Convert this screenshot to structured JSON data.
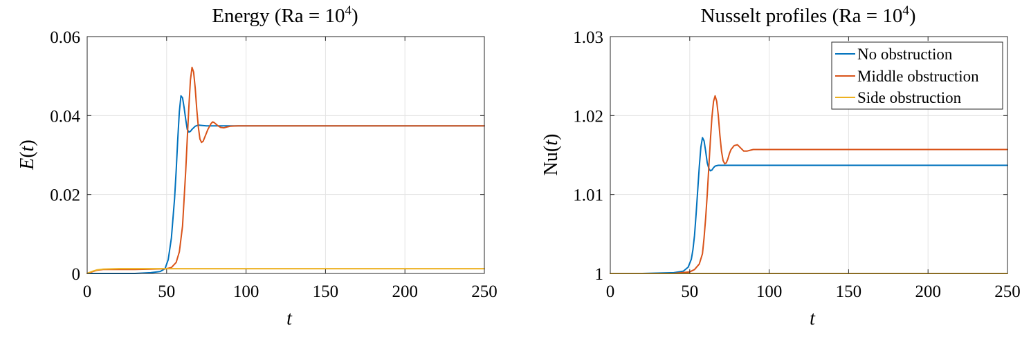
{
  "chart_data": [
    {
      "type": "line",
      "title": "Energy (Ra = 10⁴)",
      "title_parts": {
        "pre": "Energy (Ra = 10",
        "sup": "4",
        "post": ")"
      },
      "xlabel": "t",
      "ylabel": "E(t)",
      "ylabel_parts": {
        "fn": "E",
        "arg": "t"
      },
      "xlim": [
        0,
        250
      ],
      "ylim": [
        0,
        0.06
      ],
      "xticks": [
        0,
        50,
        100,
        150,
        200,
        250
      ],
      "xtick_labels": [
        "0",
        "50",
        "100",
        "150",
        "200",
        "250"
      ],
      "yticks": [
        0,
        0.02,
        0.04,
        0.06
      ],
      "ytick_labels": [
        "0",
        "0.02",
        "0.04",
        "0.06"
      ],
      "grid": true,
      "series": [
        {
          "name": "No obstruction",
          "color": "#0072BD",
          "x": [
            0,
            10,
            20,
            30,
            40,
            46,
            49,
            51,
            53,
            55,
            56,
            57,
            58,
            59,
            60,
            61,
            62,
            63,
            64,
            65,
            66,
            68,
            70,
            72,
            75,
            80,
            90,
            100,
            150,
            200,
            250
          ],
          "y": [
            0,
            0,
            0,
            0,
            0.0002,
            0.0005,
            0.0012,
            0.0035,
            0.009,
            0.019,
            0.026,
            0.034,
            0.041,
            0.045,
            0.0445,
            0.042,
            0.039,
            0.0365,
            0.0358,
            0.036,
            0.0365,
            0.0373,
            0.0376,
            0.0375,
            0.0374,
            0.0374,
            0.0374,
            0.0374,
            0.0374,
            0.0374,
            0.0374
          ]
        },
        {
          "name": "Middle obstruction",
          "color": "#D95319",
          "x": [
            0,
            3,
            6,
            10,
            20,
            30,
            40,
            50,
            53,
            56,
            58,
            60,
            62,
            63,
            64,
            65,
            66,
            67,
            68,
            69,
            70,
            71,
            72,
            73,
            74,
            76,
            78,
            79,
            80,
            82,
            84,
            86,
            88,
            90,
            95,
            100,
            150,
            200,
            250
          ],
          "y": [
            0,
            0.0004,
            0.0008,
            0.001,
            0.001,
            0.001,
            0.0011,
            0.0012,
            0.0015,
            0.0028,
            0.0055,
            0.012,
            0.026,
            0.034,
            0.042,
            0.049,
            0.0522,
            0.051,
            0.047,
            0.0415,
            0.037,
            0.034,
            0.0332,
            0.0335,
            0.0345,
            0.0365,
            0.038,
            0.0384,
            0.0382,
            0.0375,
            0.037,
            0.0369,
            0.0371,
            0.0373,
            0.0374,
            0.0374,
            0.0374,
            0.0374,
            0.0374
          ]
        },
        {
          "name": "Side obstruction",
          "color": "#EDB120",
          "x": [
            0,
            3,
            6,
            10,
            20,
            50,
            100,
            150,
            200,
            250
          ],
          "y": [
            0,
            0.0005,
            0.0009,
            0.0011,
            0.0012,
            0.0012,
            0.0012,
            0.0012,
            0.0012,
            0.0012
          ]
        }
      ]
    },
    {
      "type": "line",
      "title": "Nusselt profiles (Ra = 10⁴)",
      "title_parts": {
        "pre": "Nusselt profiles (Ra = 10",
        "sup": "4",
        "post": ")"
      },
      "xlabel": "t",
      "ylabel": "Nu(t)",
      "ylabel_parts": {
        "fn": "Nu",
        "arg": "t"
      },
      "xlim": [
        0,
        250
      ],
      "ylim": [
        1,
        1.03
      ],
      "xticks": [
        0,
        50,
        100,
        150,
        200,
        250
      ],
      "xtick_labels": [
        "0",
        "50",
        "100",
        "150",
        "200",
        "250"
      ],
      "yticks": [
        1,
        1.01,
        1.02,
        1.03
      ],
      "ytick_labels": [
        "1",
        "1.01",
        "1.02",
        "1.03"
      ],
      "grid": true,
      "legend": {
        "location": "top-right",
        "entries": [
          "No obstruction",
          "Middle obstruction",
          "Side obstruction"
        ]
      },
      "series": [
        {
          "name": "No obstruction",
          "color": "#0072BD",
          "x": [
            0,
            20,
            40,
            46,
            49,
            51,
            52,
            53,
            54,
            55,
            56,
            57,
            58,
            59,
            60,
            61,
            62,
            63,
            64,
            65,
            66,
            68,
            70,
            72,
            75,
            80,
            90,
            100,
            150,
            200,
            250
          ],
          "y": [
            1,
            1,
            1.0001,
            1.0003,
            1.0008,
            1.0018,
            1.003,
            1.0048,
            1.0075,
            1.0105,
            1.0135,
            1.016,
            1.0172,
            1.0168,
            1.0155,
            1.014,
            1.0133,
            1.013,
            1.0131,
            1.0134,
            1.0136,
            1.0137,
            1.0137,
            1.0137,
            1.0137,
            1.0137,
            1.0137,
            1.0137,
            1.0137,
            1.0137,
            1.0137
          ]
        },
        {
          "name": "Middle obstruction",
          "color": "#D95319",
          "x": [
            0,
            20,
            40,
            50,
            53,
            56,
            58,
            59,
            60,
            61,
            62,
            63,
            64,
            65,
            66,
            67,
            68,
            69,
            70,
            71,
            72,
            73,
            74,
            75,
            76,
            78,
            80,
            82,
            84,
            86,
            88,
            90,
            95,
            100,
            150,
            200,
            250
          ],
          "y": [
            1,
            1,
            1,
            1.0002,
            1.0005,
            1.0012,
            1.0025,
            1.0045,
            1.007,
            1.01,
            1.0135,
            1.0168,
            1.0198,
            1.0218,
            1.0225,
            1.0218,
            1.02,
            1.0175,
            1.0155,
            1.0143,
            1.0139,
            1.014,
            1.0145,
            1.0152,
            1.0157,
            1.0162,
            1.0163,
            1.0159,
            1.0155,
            1.0155,
            1.0156,
            1.0157,
            1.0157,
            1.0157,
            1.0157,
            1.0157,
            1.0157
          ]
        },
        {
          "name": "Side obstruction",
          "color": "#EDB120",
          "x": [
            0,
            50,
            100,
            150,
            200,
            250
          ],
          "y": [
            1,
            1,
            1,
            1,
            1,
            1
          ]
        }
      ]
    }
  ]
}
